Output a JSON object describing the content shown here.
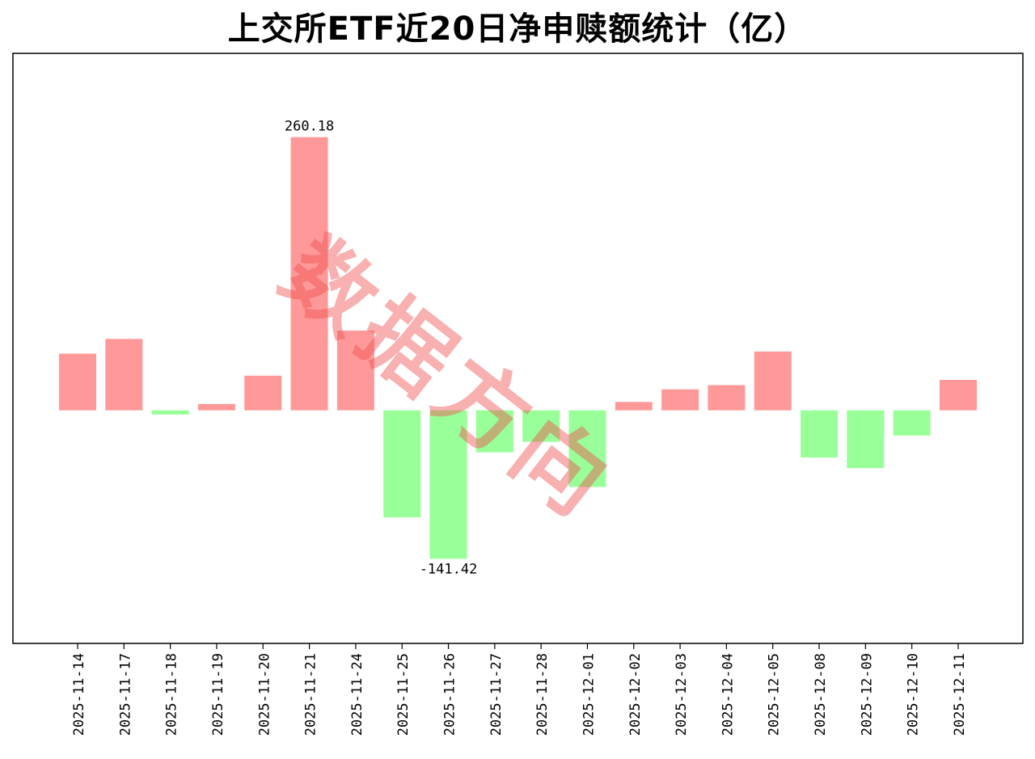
{
  "chart_data": {
    "type": "bar",
    "title": "上交所ETF近20日净申赎额统计（亿）",
    "xlabel": "",
    "ylabel": "",
    "categories": [
      "2025-11-14",
      "2025-11-17",
      "2025-11-18",
      "2025-11-19",
      "2025-11-20",
      "2025-11-21",
      "2025-11-24",
      "2025-11-25",
      "2025-11-26",
      "2025-11-27",
      "2025-11-28",
      "2025-12-01",
      "2025-12-02",
      "2025-12-03",
      "2025-12-04",
      "2025-12-05",
      "2025-12-08",
      "2025-12-09",
      "2025-12-10",
      "2025-12-11"
    ],
    "values": [
      54,
      68,
      -4,
      6,
      33,
      260.18,
      76,
      -102,
      -141.42,
      -40,
      -30,
      -73,
      8,
      20,
      24,
      56,
      -45,
      -55,
      -24,
      29
    ],
    "data_labels": [
      {
        "index": 5,
        "text": "260.18"
      },
      {
        "index": 8,
        "text": "-141.42"
      }
    ],
    "ylim": [
      -222,
      340
    ],
    "y_ticks_shown": false,
    "grid": false,
    "colors": {
      "positive": "#ff9999",
      "negative": "#99ff99"
    }
  },
  "watermark": "数据方向"
}
